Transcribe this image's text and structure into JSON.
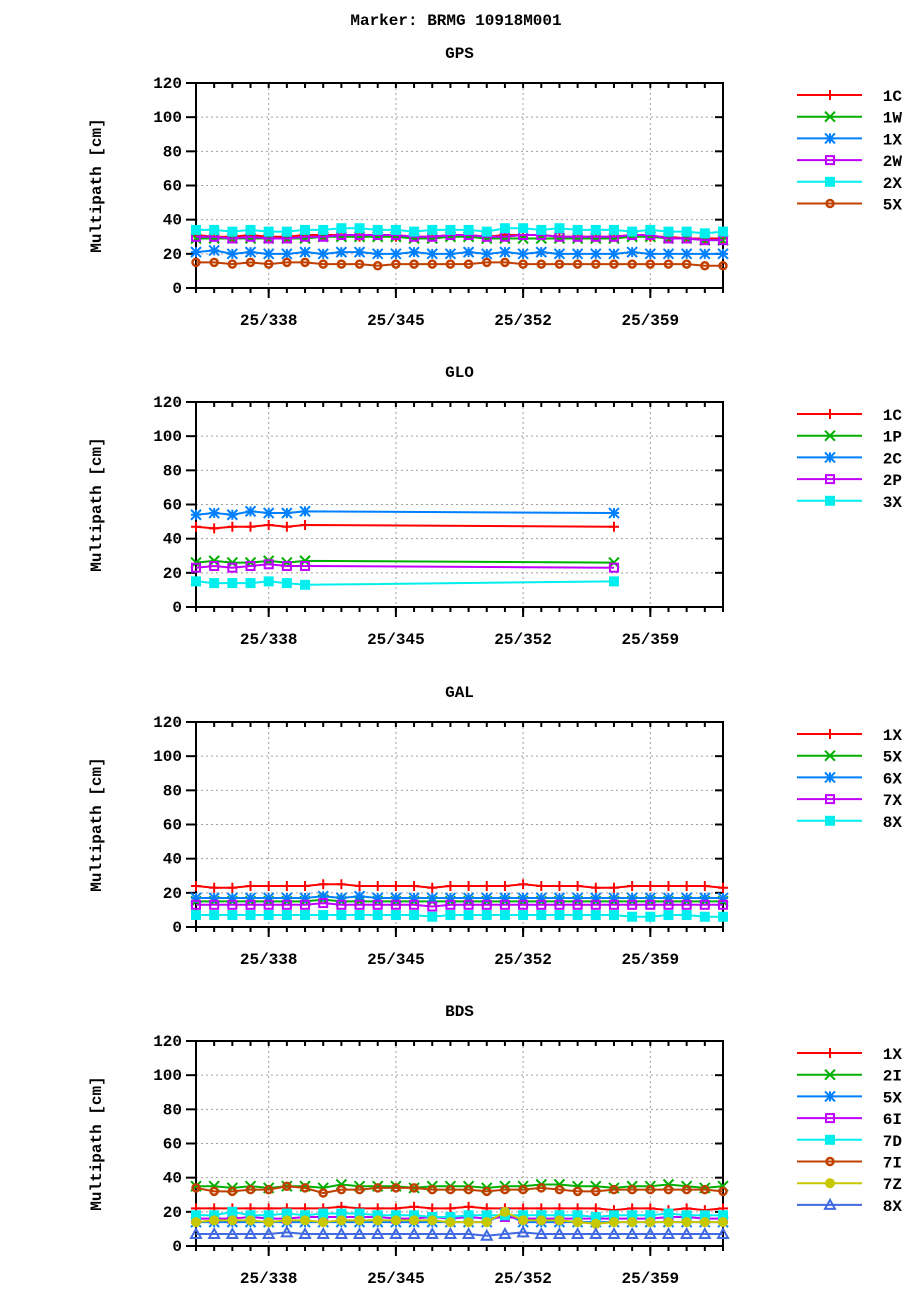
{
  "chart_data": {
    "title": "Marker: BRMG 10918M001",
    "x_tick_labels": [
      "25/338",
      "25/345",
      "25/352",
      "25/359"
    ],
    "x_tick_values": [
      338,
      345,
      352,
      359
    ],
    "xlim": [
      334,
      363
    ],
    "colors": {
      "1": "#ff0000",
      "2": "#00b000",
      "3": "#0080ff",
      "4": "#c000ff",
      "5": "#00eeee",
      "6": "#c04000",
      "7": "#c8c800",
      "8": "#4169e1"
    },
    "panels": [
      {
        "type": "line",
        "title": "GPS",
        "ylabel": "Multipath [cm]",
        "ylim": [
          0,
          120
        ],
        "yticks": [
          0,
          20,
          40,
          60,
          80,
          100,
          120
        ],
        "grid": true,
        "legend": "right",
        "x": [
          334,
          335,
          336,
          337,
          338,
          339,
          340,
          341,
          342,
          343,
          344,
          345,
          346,
          347,
          348,
          349,
          350,
          351,
          352,
          353,
          354,
          355,
          356,
          357,
          358,
          359,
          360,
          361,
          362,
          363
        ],
        "series": [
          {
            "name": "1C",
            "marker": "plus",
            "style": 1,
            "values": [
              31,
              30,
              30,
              31,
              30,
              30,
              31,
              31,
              31,
              30,
              31,
              30,
              30,
              30,
              31,
              31,
              30,
              31,
              31,
              31,
              30,
              30,
              30,
              30,
              31,
              30,
              30,
              29,
              29,
              29
            ]
          },
          {
            "name": "1W",
            "marker": "x",
            "style": 2,
            "values": [
              29,
              29,
              29,
              29,
              29,
              29,
              29,
              30,
              30,
              30,
              30,
              30,
              29,
              29,
              30,
              30,
              29,
              29,
              29,
              29,
              29,
              29,
              29,
              29,
              30,
              30,
              29,
              29,
              28,
              28
            ]
          },
          {
            "name": "1X",
            "marker": "star",
            "style": 3,
            "values": [
              21,
              22,
              20,
              21,
              20,
              20,
              21,
              20,
              21,
              21,
              20,
              20,
              21,
              20,
              20,
              21,
              20,
              21,
              20,
              21,
              20,
              20,
              20,
              20,
              21,
              20,
              20,
              20,
              20,
              20
            ]
          },
          {
            "name": "2W",
            "marker": "square",
            "style": 4,
            "values": [
              30,
              30,
              29,
              30,
              29,
              29,
              30,
              30,
              31,
              31,
              31,
              31,
              30,
              30,
              31,
              31,
              30,
              30,
              31,
              31,
              30,
              30,
              30,
              30,
              31,
              31,
              29,
              29,
              28,
              28
            ]
          },
          {
            "name": "2X",
            "marker": "filledsquare",
            "style": 5,
            "values": [
              34,
              34,
              33,
              34,
              33,
              33,
              34,
              34,
              35,
              35,
              34,
              34,
              33,
              34,
              34,
              34,
              33,
              35,
              35,
              34,
              35,
              34,
              34,
              34,
              33,
              34,
              33,
              33,
              32,
              33
            ]
          },
          {
            "name": "5X",
            "marker": "circle",
            "style": 6,
            "values": [
              15,
              15,
              14,
              15,
              14,
              15,
              15,
              14,
              14,
              14,
              13,
              14,
              14,
              14,
              14,
              14,
              15,
              15,
              14,
              14,
              14,
              14,
              14,
              14,
              14,
              14,
              14,
              14,
              13,
              13
            ]
          }
        ]
      },
      {
        "type": "line",
        "title": "GLO",
        "ylabel": "Multipath [cm]",
        "ylim": [
          0,
          120
        ],
        "yticks": [
          0,
          20,
          40,
          60,
          80,
          100,
          120
        ],
        "grid": true,
        "legend": "right",
        "x": [
          334,
          335,
          336,
          337,
          338,
          339,
          340,
          357
        ],
        "series": [
          {
            "name": "1C",
            "marker": "plus",
            "style": 1,
            "values": [
              47,
              46,
              47,
              47,
              48,
              47,
              48,
              47
            ]
          },
          {
            "name": "1P",
            "marker": "x",
            "style": 2,
            "values": [
              26,
              27,
              26,
              26,
              27,
              26,
              27,
              26
            ]
          },
          {
            "name": "2C",
            "marker": "star",
            "style": 3,
            "values": [
              54,
              55,
              54,
              56,
              55,
              55,
              56,
              55
            ]
          },
          {
            "name": "2P",
            "marker": "square",
            "style": 4,
            "values": [
              23,
              24,
              23,
              24,
              25,
              24,
              24,
              23
            ]
          },
          {
            "name": "3X",
            "marker": "filledsquare",
            "style": 5,
            "values": [
              15,
              14,
              14,
              14,
              15,
              14,
              13,
              15
            ]
          }
        ]
      },
      {
        "type": "line",
        "title": "GAL",
        "ylabel": "Multipath [cm]",
        "ylim": [
          0,
          120
        ],
        "yticks": [
          0,
          20,
          40,
          60,
          80,
          100,
          120
        ],
        "grid": true,
        "legend": "right",
        "x": [
          334,
          335,
          336,
          337,
          338,
          339,
          340,
          341,
          342,
          343,
          344,
          345,
          346,
          347,
          348,
          349,
          350,
          351,
          352,
          353,
          354,
          355,
          356,
          357,
          358,
          359,
          360,
          361,
          362,
          363
        ],
        "series": [
          {
            "name": "1X",
            "marker": "plus",
            "style": 1,
            "values": [
              24,
              23,
              23,
              24,
              24,
              24,
              24,
              25,
              25,
              24,
              24,
              24,
              24,
              23,
              24,
              24,
              24,
              24,
              25,
              24,
              24,
              24,
              23,
              23,
              24,
              24,
              24,
              24,
              24,
              23
            ]
          },
          {
            "name": "5X",
            "marker": "x",
            "style": 2,
            "values": [
              15,
              15,
              15,
              15,
              15,
              15,
              15,
              16,
              15,
              15,
              15,
              15,
              15,
              15,
              15,
              15,
              15,
              15,
              15,
              15,
              15,
              15,
              15,
              15,
              15,
              15,
              15,
              15,
              15,
              15
            ]
          },
          {
            "name": "6X",
            "marker": "star",
            "style": 3,
            "values": [
              17,
              17,
              17,
              17,
              17,
              17,
              17,
              18,
              17,
              18,
              17,
              17,
              17,
              17,
              17,
              17,
              17,
              17,
              17,
              17,
              17,
              17,
              17,
              17,
              17,
              17,
              17,
              17,
              17,
              17
            ]
          },
          {
            "name": "7X",
            "marker": "square",
            "style": 4,
            "values": [
              13,
              13,
              13,
              13,
              13,
              13,
              13,
              14,
              13,
              13,
              13,
              13,
              13,
              12,
              13,
              13,
              13,
              13,
              13,
              13,
              13,
              13,
              13,
              13,
              13,
              13,
              13,
              13,
              13,
              13
            ]
          },
          {
            "name": "8X",
            "marker": "filledsquare",
            "style": 5,
            "values": [
              7,
              7,
              7,
              7,
              7,
              7,
              7,
              7,
              7,
              7,
              7,
              7,
              7,
              6,
              7,
              7,
              7,
              7,
              7,
              7,
              7,
              7,
              7,
              7,
              6,
              6,
              7,
              7,
              6,
              6
            ]
          }
        ]
      },
      {
        "type": "line",
        "title": "BDS",
        "ylabel": "Multipath [cm]",
        "ylim": [
          0,
          120
        ],
        "yticks": [
          0,
          20,
          40,
          60,
          80,
          100,
          120
        ],
        "grid": true,
        "legend": "right",
        "x": [
          334,
          335,
          336,
          337,
          338,
          339,
          340,
          341,
          342,
          343,
          344,
          345,
          346,
          347,
          348,
          349,
          350,
          351,
          352,
          353,
          354,
          355,
          356,
          357,
          358,
          359,
          360,
          361,
          362,
          363
        ],
        "series": [
          {
            "name": "1X",
            "marker": "plus",
            "style": 1,
            "values": [
              22,
              22,
              22,
              22,
              22,
              22,
              22,
              22,
              23,
              22,
              22,
              22,
              23,
              22,
              22,
              23,
              22,
              22,
              22,
              22,
              22,
              22,
              22,
              21,
              22,
              22,
              21,
              22,
              21,
              22
            ]
          },
          {
            "name": "2I",
            "marker": "x",
            "style": 2,
            "values": [
              35,
              35,
              34,
              35,
              34,
              35,
              35,
              34,
              36,
              35,
              35,
              35,
              34,
              35,
              35,
              35,
              34,
              35,
              35,
              36,
              36,
              35,
              35,
              34,
              35,
              35,
              36,
              35,
              34,
              35
            ]
          },
          {
            "name": "5X",
            "marker": "star",
            "style": 3,
            "values": [
              14,
              14,
              14,
              14,
              14,
              14,
              14,
              14,
              14,
              14,
              14,
              14,
              14,
              14,
              14,
              14,
              14,
              19,
              14,
              14,
              14,
              14,
              14,
              14,
              14,
              14,
              14,
              14,
              14,
              14
            ]
          },
          {
            "name": "6I",
            "marker": "square",
            "style": 4,
            "values": [
              16,
              16,
              16,
              17,
              16,
              16,
              17,
              17,
              17,
              17,
              17,
              16,
              16,
              17,
              16,
              17,
              16,
              17,
              16,
              16,
              16,
              16,
              16,
              16,
              16,
              16,
              17,
              17,
              16,
              16
            ]
          },
          {
            "name": "7D",
            "marker": "filledsquare",
            "style": 5,
            "values": [
              18,
              18,
              20,
              18,
              18,
              19,
              18,
              19,
              19,
              19,
              18,
              18,
              18,
              17,
              17,
              18,
              18,
              18,
              18,
              18,
              18,
              18,
              17,
              18,
              18,
              18,
              19,
              18,
              18,
              18
            ]
          },
          {
            "name": "7I",
            "marker": "circle",
            "style": 6,
            "values": [
              34,
              32,
              32,
              33,
              33,
              35,
              34,
              31,
              33,
              33,
              34,
              34,
              34,
              33,
              33,
              33,
              32,
              33,
              33,
              34,
              33,
              32,
              32,
              33,
              33,
              33,
              33,
              33,
              33,
              32
            ]
          },
          {
            "name": "7Z",
            "marker": "filledcircle",
            "style": 7,
            "values": [
              14,
              15,
              15,
              15,
              14,
              15,
              15,
              14,
              15,
              15,
              15,
              15,
              15,
              15,
              14,
              14,
              14,
              20,
              15,
              15,
              15,
              14,
              13,
              14,
              14,
              14,
              14,
              14,
              14,
              14
            ]
          },
          {
            "name": "8X",
            "marker": "triangle",
            "style": 8,
            "values": [
              7,
              7,
              7,
              7,
              7,
              8,
              7,
              7,
              7,
              7,
              7,
              7,
              7,
              7,
              7,
              7,
              6,
              7,
              8,
              7,
              7,
              7,
              7,
              7,
              7,
              7,
              7,
              7,
              7,
              7
            ]
          }
        ]
      }
    ]
  }
}
